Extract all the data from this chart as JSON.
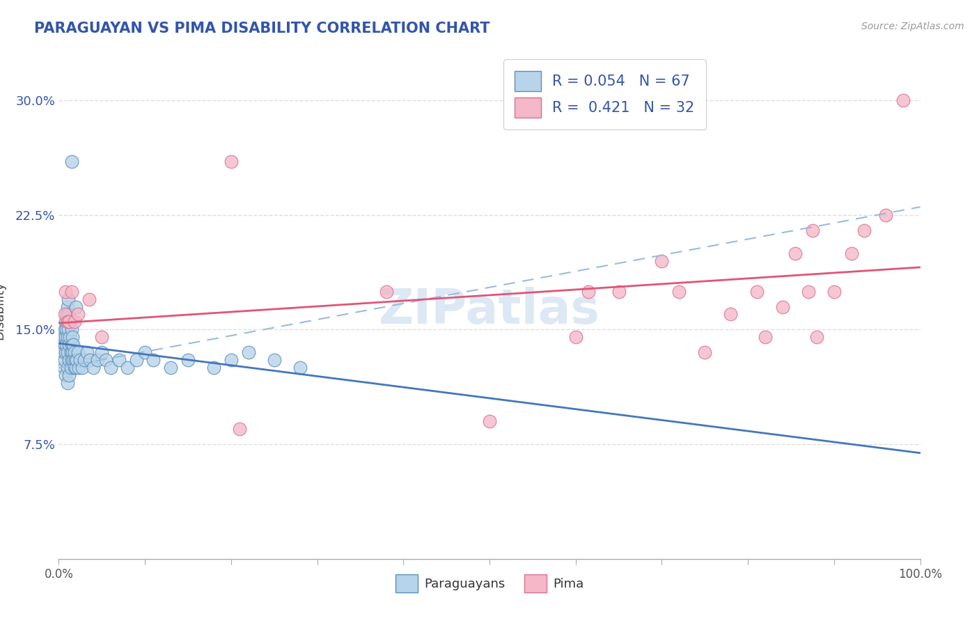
{
  "title": "PARAGUAYAN VS PIMA DISABILITY CORRELATION CHART",
  "source": "Source: ZipAtlas.com",
  "ylabel": "Disability",
  "xlim_min": 0.0,
  "xlim_max": 1.0,
  "ylim_min": 0.0,
  "ylim_max": 0.325,
  "xtick_vals": [
    0.0,
    0.1,
    0.2,
    0.3,
    0.4,
    0.5,
    0.6,
    0.7,
    0.8,
    0.9,
    1.0
  ],
  "xticklabels": [
    "0.0%",
    "",
    "",
    "",
    "",
    "",
    "",
    "",
    "",
    "",
    "100.0%"
  ],
  "ytick_vals": [
    0.075,
    0.15,
    0.225,
    0.3
  ],
  "yticklabels": [
    "7.5%",
    "15.0%",
    "22.5%",
    "30.0%"
  ],
  "blue_R": 0.054,
  "blue_N": 67,
  "pink_R": 0.421,
  "pink_N": 32,
  "blue_face_color": "#b8d4ea",
  "blue_edge_color": "#5b8db8",
  "pink_face_color": "#f4b8c8",
  "pink_edge_color": "#d97090",
  "blue_line_color": "#4477bb",
  "pink_line_color": "#e05575",
  "dashed_color": "#99bbdd",
  "watermark": "ZIPatlas",
  "legend_label1": "Paraguayans",
  "legend_label2": "Pima",
  "label_color": "#3355aa",
  "title_color": "#3355aa",
  "blue_x": [
    0.005,
    0.006,
    0.006,
    0.007,
    0.007,
    0.007,
    0.008,
    0.008,
    0.008,
    0.008,
    0.009,
    0.009,
    0.009,
    0.01,
    0.01,
    0.01,
    0.01,
    0.01,
    0.01,
    0.011,
    0.011,
    0.011,
    0.012,
    0.012,
    0.012,
    0.013,
    0.013,
    0.014,
    0.014,
    0.015,
    0.015,
    0.015,
    0.016,
    0.016,
    0.017,
    0.017,
    0.018,
    0.018,
    0.019,
    0.02,
    0.021,
    0.022,
    0.023,
    0.025,
    0.027,
    0.03,
    0.033,
    0.036,
    0.04,
    0.045,
    0.05,
    0.055,
    0.06,
    0.07,
    0.08,
    0.09,
    0.1,
    0.11,
    0.13,
    0.15,
    0.18,
    0.2,
    0.22,
    0.25,
    0.28,
    0.015,
    0.02
  ],
  "blue_y": [
    0.135,
    0.145,
    0.125,
    0.15,
    0.14,
    0.13,
    0.155,
    0.145,
    0.135,
    0.12,
    0.16,
    0.15,
    0.14,
    0.165,
    0.155,
    0.145,
    0.135,
    0.125,
    0.115,
    0.17,
    0.16,
    0.15,
    0.14,
    0.13,
    0.12,
    0.155,
    0.145,
    0.135,
    0.125,
    0.15,
    0.14,
    0.13,
    0.145,
    0.135,
    0.14,
    0.13,
    0.135,
    0.125,
    0.13,
    0.125,
    0.13,
    0.135,
    0.125,
    0.13,
    0.125,
    0.13,
    0.135,
    0.13,
    0.125,
    0.13,
    0.135,
    0.13,
    0.125,
    0.13,
    0.125,
    0.13,
    0.135,
    0.13,
    0.125,
    0.13,
    0.125,
    0.13,
    0.135,
    0.13,
    0.125,
    0.26,
    0.165
  ],
  "pink_x": [
    0.007,
    0.008,
    0.01,
    0.012,
    0.015,
    0.018,
    0.022,
    0.035,
    0.05,
    0.2,
    0.21,
    0.38,
    0.5,
    0.6,
    0.615,
    0.65,
    0.7,
    0.72,
    0.75,
    0.78,
    0.81,
    0.82,
    0.84,
    0.855,
    0.87,
    0.875,
    0.88,
    0.9,
    0.92,
    0.935,
    0.96,
    0.98
  ],
  "pink_y": [
    0.16,
    0.175,
    0.155,
    0.155,
    0.175,
    0.155,
    0.16,
    0.17,
    0.145,
    0.26,
    0.085,
    0.175,
    0.09,
    0.145,
    0.175,
    0.175,
    0.195,
    0.175,
    0.135,
    0.16,
    0.175,
    0.145,
    0.165,
    0.2,
    0.175,
    0.215,
    0.145,
    0.175,
    0.2,
    0.215,
    0.225,
    0.3
  ]
}
